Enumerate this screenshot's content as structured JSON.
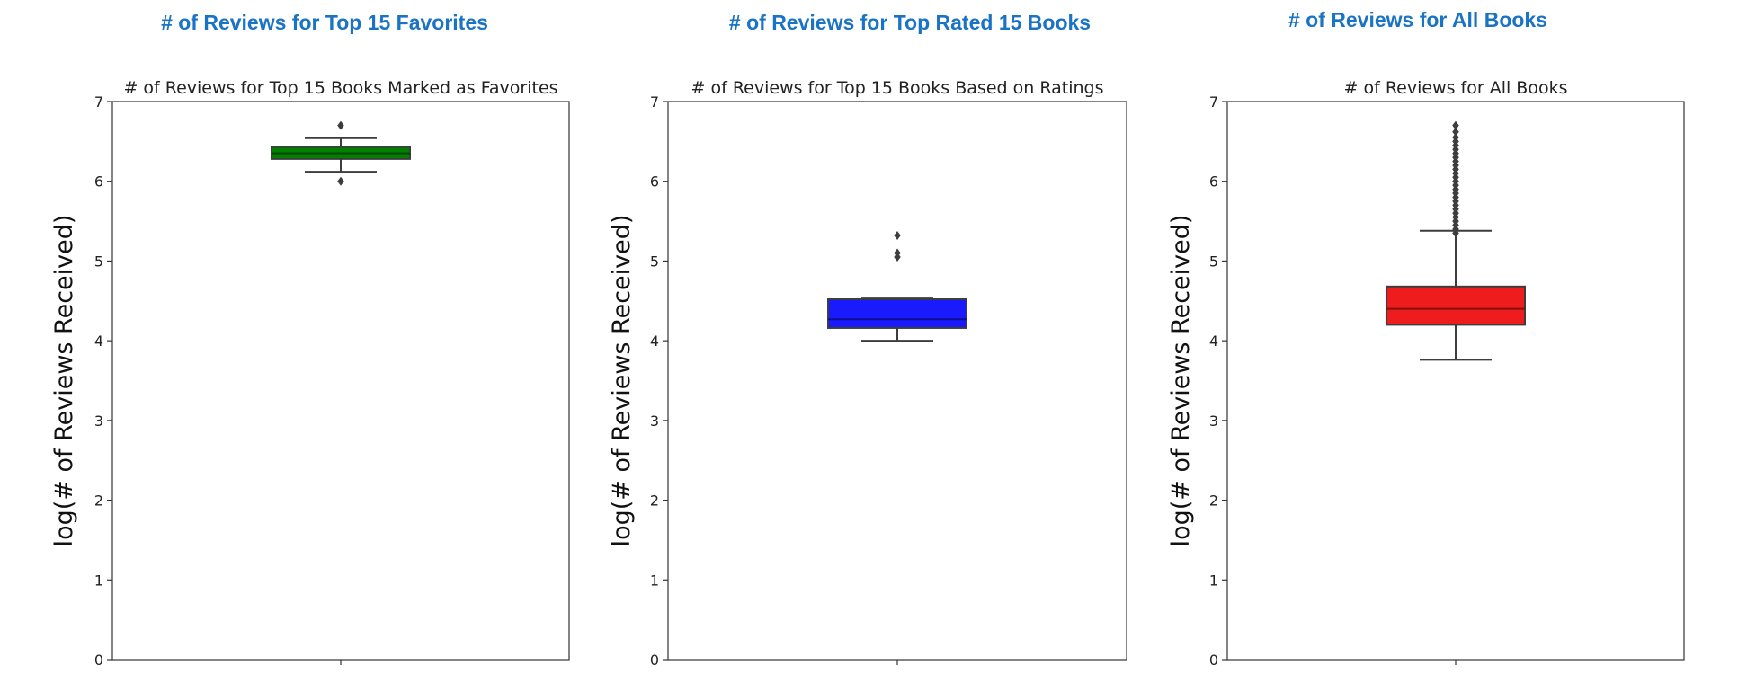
{
  "headings": [
    "# of Reviews for Top 15 Favorites",
    "# of Reviews for Top Rated 15 Books",
    "# of Reviews for All Books"
  ],
  "colors": {
    "heading": "#1a73c4",
    "green": "#008000",
    "blue": "#1a1aff",
    "red": "#ee1c1c"
  },
  "chart_data": [
    {
      "type": "box",
      "title": "# of Reviews for Top 15 Books Marked as Favorites",
      "ylabel": "log(# of Reviews Received)",
      "xlabel": "",
      "ylim": [
        0,
        7
      ],
      "yticks": [
        0,
        1,
        2,
        3,
        4,
        5,
        6,
        7
      ],
      "grid": false,
      "box_color": "#008000",
      "box": {
        "q1": 6.28,
        "median": 6.35,
        "q3": 6.43,
        "whisker_low": 6.12,
        "whisker_high": 6.54
      },
      "outliers": [
        6.0,
        6.7
      ]
    },
    {
      "type": "box",
      "title": "# of Reviews for Top 15 Books Based on Ratings",
      "ylabel": "log(# of Reviews Received)",
      "xlabel": "",
      "ylim": [
        0,
        7
      ],
      "yticks": [
        0,
        1,
        2,
        3,
        4,
        5,
        6,
        7
      ],
      "grid": false,
      "box_color": "#1a1aff",
      "box": {
        "q1": 4.16,
        "median": 4.27,
        "q3": 4.52,
        "whisker_low": 4.0,
        "whisker_high": 4.53
      },
      "outliers": [
        5.05,
        5.1,
        5.32
      ]
    },
    {
      "type": "box",
      "title": "# of Reviews for All Books",
      "ylabel": "log(# of Reviews Received)",
      "xlabel": "",
      "ylim": [
        0,
        7
      ],
      "yticks": [
        0,
        1,
        2,
        3,
        4,
        5,
        6,
        7
      ],
      "grid": false,
      "box_color": "#ee1c1c",
      "box": {
        "q1": 4.2,
        "median": 4.4,
        "q3": 4.68,
        "whisker_low": 3.76,
        "whisker_high": 5.38
      },
      "outliers": [
        5.35,
        5.4,
        5.45,
        5.5,
        5.55,
        5.6,
        5.65,
        5.7,
        5.75,
        5.8,
        5.85,
        5.9,
        5.95,
        6.0,
        6.05,
        6.1,
        6.15,
        6.2,
        6.25,
        6.3,
        6.35,
        6.4,
        6.45,
        6.5,
        6.55,
        6.62,
        6.7
      ]
    }
  ]
}
